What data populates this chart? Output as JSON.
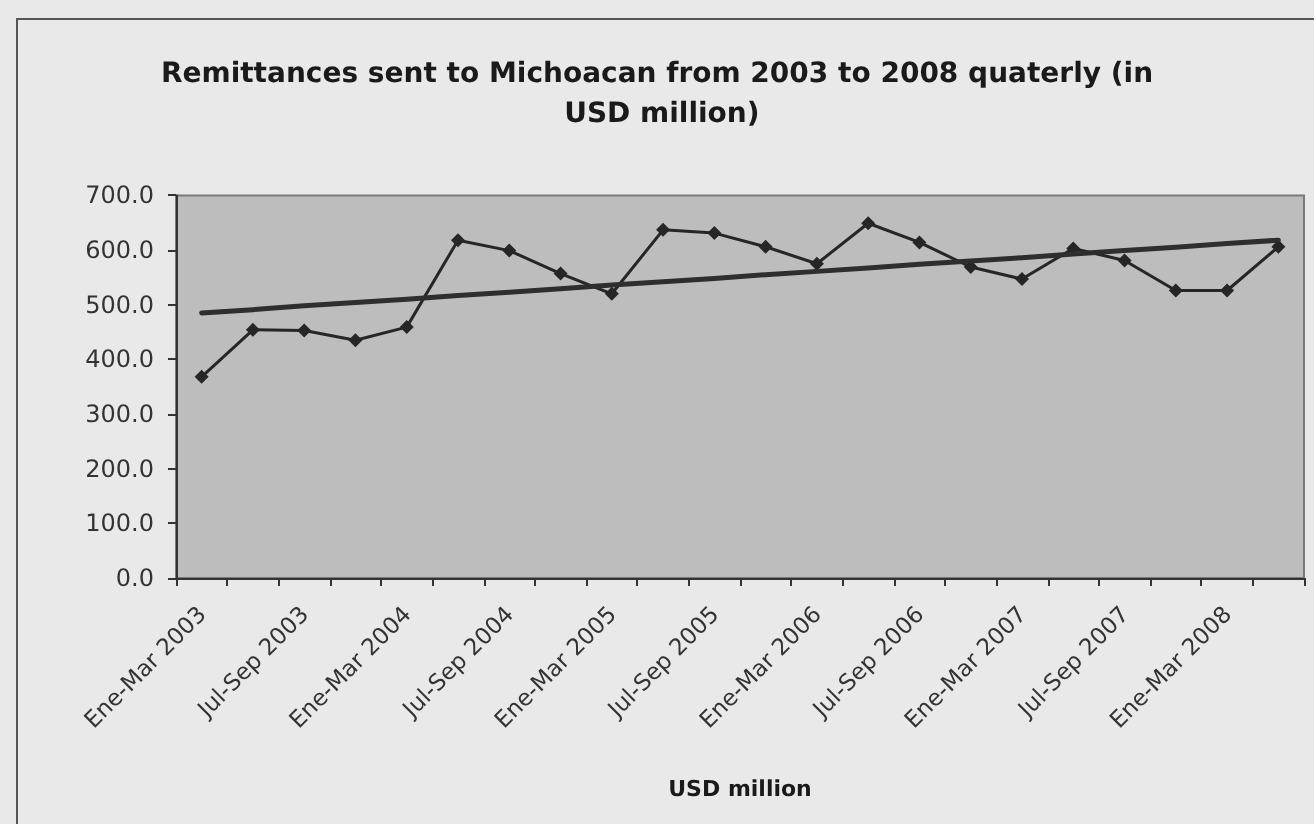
{
  "chart_data": {
    "type": "line",
    "title": "Remittances sent to Michoacan from 2003 to 2008 quaterly (in USD million)",
    "xlabel": "USD million",
    "categories": [
      "Ene-Mar 2003",
      null,
      "Jul-Sep 2003",
      null,
      "Ene-Mar 2004",
      null,
      "Jul-Sep 2004",
      null,
      "Ene-Mar 2005",
      null,
      "Jul-Sep 2005",
      null,
      "Ene-Mar 2006",
      null,
      "Jul-Sep 2006",
      null,
      "Ene-Mar 2007",
      null,
      "Jul-Sep 2007",
      null,
      "Ene-Mar 2008",
      null
    ],
    "series": [
      {
        "color": "#262626",
        "values": [
          368,
          454,
          453,
          435,
          459,
          618,
          599,
          557,
          520,
          637,
          631,
          606,
          575,
          649,
          614,
          569,
          547,
          603,
          581,
          526,
          526,
          606
        ]
      },
      {
        "color": "#2e2e2e",
        "marker": "none",
        "values": [
          485,
          491,
          498,
          504,
          510,
          517,
          523,
          529,
          536,
          542,
          548,
          555,
          561,
          567,
          574,
          580,
          586,
          593,
          599,
          605,
          612,
          618
        ]
      }
    ],
    "ylim": [
      0,
      700
    ],
    "yticks": [
      {
        "value": 0,
        "label": "0.0"
      },
      {
        "value": 100,
        "label": "100.0"
      },
      {
        "value": 200,
        "label": "200.0"
      },
      {
        "value": 300,
        "label": "300.0"
      },
      {
        "value": 400,
        "label": "400.0"
      },
      {
        "value": 500,
        "label": "500.0"
      },
      {
        "value": 600,
        "label": "600.0"
      },
      {
        "value": 700,
        "label": "700.0"
      }
    ],
    "grid": false,
    "marker": "diamond"
  }
}
